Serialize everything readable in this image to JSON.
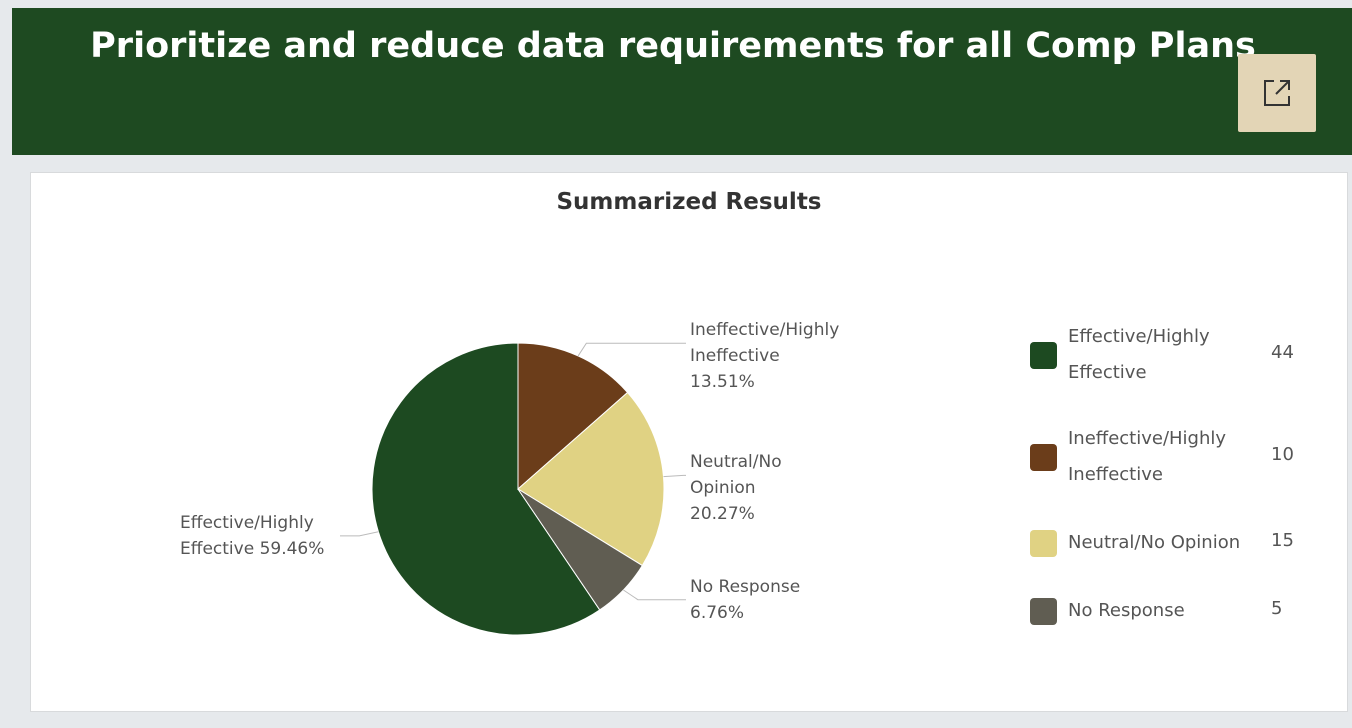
{
  "header": {
    "title": "Prioritize and reduce data requirements for all Comp Plans"
  },
  "chart_data": {
    "type": "pie",
    "title": "Summarized Results",
    "categories": [
      "Effective/Highly Effective",
      "Ineffective/Highly Ineffective",
      "Neutral/No Opinion",
      "No Response"
    ],
    "values": [
      59.46,
      13.51,
      20.27,
      6.76
    ],
    "value_labels": [
      "59.46%",
      "13.51%",
      "20.27%",
      "6.76%"
    ],
    "counts": [
      44,
      10,
      15,
      5
    ],
    "colors": [
      "#1d4a21",
      "#6b3d1a",
      "#e0d283",
      "#605d52"
    ]
  }
}
